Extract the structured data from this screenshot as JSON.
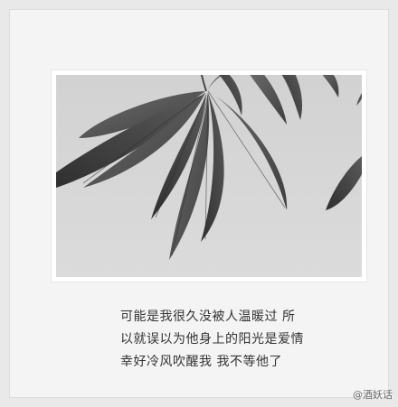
{
  "caption": {
    "line1": "可能是我很久没被人温暖过  所",
    "line2": "以就误以为他身上的阳光是爱情",
    "line3": "幸好冷风吹醒我  我不等他了"
  },
  "watermark": "@酒妖话"
}
